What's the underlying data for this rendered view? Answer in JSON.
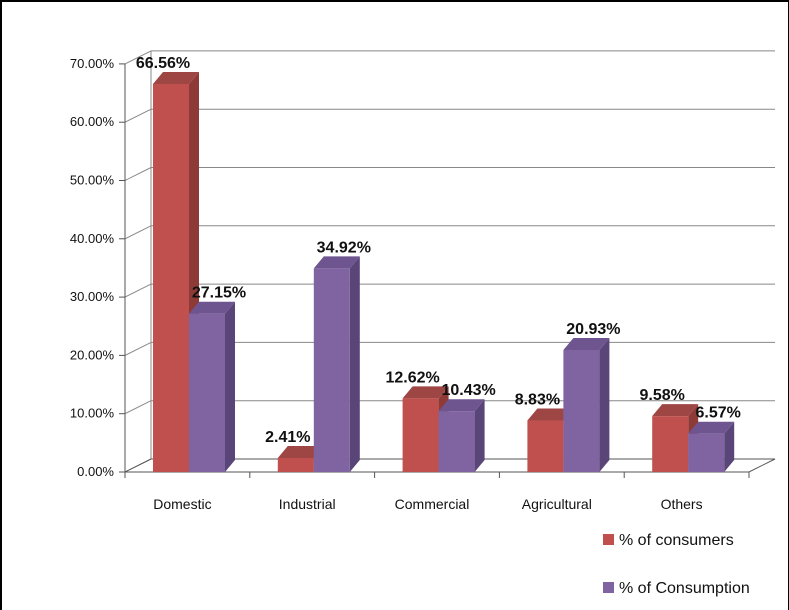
{
  "chart_data": {
    "type": "bar",
    "style": "3d-clustered-column",
    "categories": [
      "Domestic",
      "Industrial",
      "Commercial",
      "Agricultural",
      "Others"
    ],
    "series": [
      {
        "name": "% of consumers",
        "color": "#C0504D",
        "values": [
          66.56,
          2.41,
          12.62,
          8.83,
          9.58
        ],
        "labels": [
          "66.56%",
          "2.41%",
          "12.62%",
          "8.83%",
          "9.58%"
        ]
      },
      {
        "name": "% of Consumption",
        "color": "#8064A2",
        "values": [
          27.15,
          34.92,
          10.43,
          20.93,
          6.57
        ],
        "labels": [
          "27.15%",
          "34.92%",
          "10.43%",
          "20.93%",
          "6.57%"
        ]
      }
    ],
    "y_ticks": [
      "0.00%",
      "10.00%",
      "20.00%",
      "30.00%",
      "40.00%",
      "50.00%",
      "60.00%",
      "70.00%"
    ],
    "ylim": [
      0,
      70
    ],
    "grid": true,
    "legend_position": "bottom-right"
  }
}
